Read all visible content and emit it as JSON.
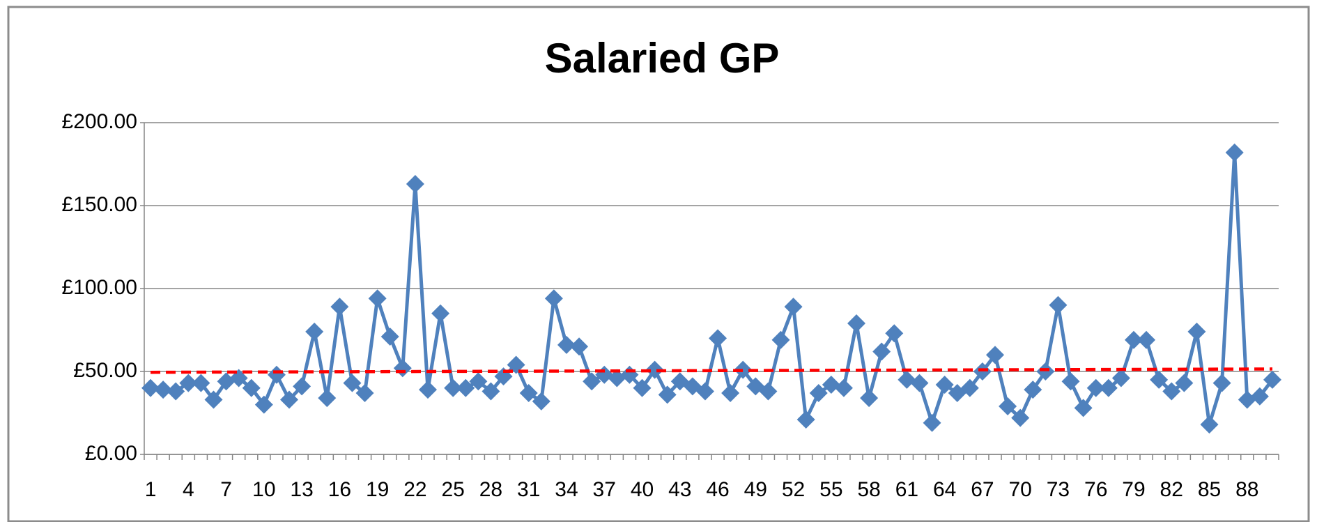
{
  "chart_data": {
    "type": "line",
    "title": "Salaried GP",
    "categories": [
      1,
      null,
      null,
      4,
      null,
      null,
      7,
      null,
      null,
      10,
      null,
      null,
      13,
      null,
      null,
      16,
      null,
      null,
      19,
      null,
      null,
      22,
      null,
      null,
      25,
      null,
      null,
      28,
      null,
      null,
      31,
      null,
      null,
      34,
      null,
      null,
      37,
      null,
      null,
      40,
      null,
      null,
      43,
      null,
      null,
      46,
      null,
      null,
      49,
      null,
      null,
      52,
      null,
      null,
      55,
      null,
      null,
      58,
      null,
      null,
      61,
      null,
      null,
      64,
      null,
      null,
      67,
      null,
      null,
      70,
      null,
      null,
      73,
      null,
      null,
      76,
      null,
      null,
      79,
      null,
      null,
      82,
      null,
      null,
      85,
      null,
      null,
      88,
      null,
      null
    ],
    "series": [
      {
        "color": "#4f81bd",
        "values": [
          40,
          39,
          38,
          43,
          43,
          33,
          44,
          46,
          40,
          30,
          48,
          33,
          41,
          74,
          34,
          89,
          43,
          37,
          94,
          71,
          52,
          163,
          39,
          85,
          40,
          40,
          44,
          38,
          47,
          54,
          37,
          32,
          94,
          66,
          65,
          44,
          48,
          46,
          48,
          40,
          51,
          36,
          44,
          41,
          38,
          70,
          37,
          51,
          41,
          38,
          69,
          89,
          21,
          37,
          42,
          40,
          79,
          34,
          62,
          73,
          45,
          43,
          19,
          42,
          37,
          40,
          50,
          60,
          29,
          22,
          39,
          50,
          90,
          44,
          28,
          40,
          40,
          46,
          69,
          69,
          45,
          38,
          43,
          74,
          18,
          43,
          182,
          33,
          35,
          45
        ]
      }
    ],
    "trendline": {
      "color": "#ff0000",
      "values": [
        49.5,
        51.5
      ]
    },
    "ylim": [
      0,
      200
    ],
    "yticks": [
      {
        "value": 0,
        "label": "£0.00"
      },
      {
        "value": 50,
        "label": "£50.00"
      },
      {
        "value": 100,
        "label": "£100.00"
      },
      {
        "value": 150,
        "label": "£150.00"
      },
      {
        "value": 200,
        "label": "£200.00"
      }
    ],
    "grid": true
  }
}
